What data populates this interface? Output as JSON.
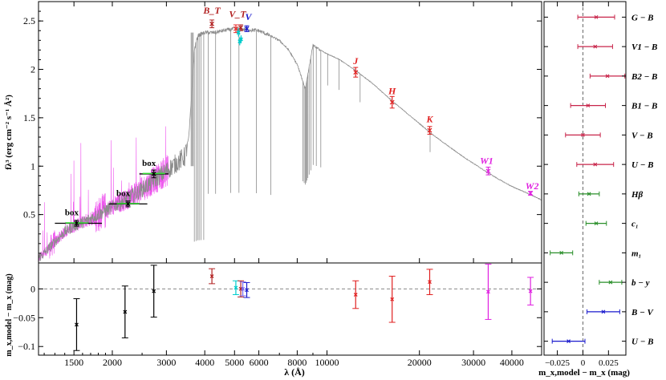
{
  "chart_data": [
    {
      "type": "line",
      "panel": "sed",
      "xscale": "log",
      "xlim": [
        1150,
        50000
      ],
      "ylim": [
        0,
        2.7
      ],
      "grid": false,
      "ylabel": "fλ³ (erg cm⁻² s⁻¹ Å²)",
      "x_ticks": [
        1500,
        2000,
        3000,
        4000,
        5000,
        6000,
        8000,
        10000,
        20000,
        30000,
        40000
      ],
      "x_tick_labels": [
        "1500",
        "2000",
        "3000",
        "4000",
        "5000",
        "6000",
        "8000",
        "10000",
        "20000",
        "30000",
        "40000"
      ],
      "y_ticks": [
        0.5,
        1,
        1.5,
        2,
        2.5
      ],
      "y_tick_labels": [
        "0.5",
        "1",
        "1.5",
        "2",
        "2.5"
      ],
      "model": {
        "x": [
          1150,
          1200,
          1300,
          1400,
          1500,
          1600,
          1800,
          2000,
          2200,
          2400,
          2600,
          2800,
          3000,
          3200,
          3450,
          3550,
          3650,
          3700,
          3800,
          4000,
          4300,
          4600,
          5000,
          5500,
          6000,
          6500,
          7000,
          7500,
          8000,
          8300,
          8500,
          9000,
          9500,
          10000,
          11000,
          12500,
          14000,
          16500,
          18000,
          20000,
          22000,
          25000,
          28000,
          32000,
          36000,
          40000,
          45000,
          50000
        ],
        "y": [
          0.05,
          0.1,
          0.22,
          0.32,
          0.38,
          0.42,
          0.5,
          0.58,
          0.65,
          0.72,
          0.8,
          0.88,
          0.95,
          1.02,
          1.1,
          1.3,
          1.9,
          2.2,
          2.35,
          2.38,
          2.38,
          2.4,
          2.42,
          2.41,
          2.4,
          2.35,
          2.3,
          2.2,
          2.05,
          1.9,
          1.8,
          2.25,
          2.2,
          2.16,
          2.1,
          1.98,
          1.86,
          1.66,
          1.56,
          1.44,
          1.33,
          1.2,
          1.09,
          0.97,
          0.87,
          0.79,
          0.72,
          0.65
        ]
      },
      "photometry": [
        {
          "label": "box",
          "x": 1530,
          "y": 0.41,
          "yerr": 0.03,
          "xerr": [
            1300,
            1850
          ],
          "color": "#000000"
        },
        {
          "label": "box",
          "x": 2250,
          "y": 0.61,
          "yerr": 0.03,
          "xerr": [
            1950,
            2600
          ],
          "color": "#000000"
        },
        {
          "label": "box",
          "x": 2730,
          "y": 0.92,
          "yerr": 0.04,
          "xerr": [
            2450,
            3050
          ],
          "color": "#000000"
        },
        {
          "label": "B_T",
          "x": 4220,
          "y": 2.47,
          "yerr": 0.04,
          "color": "#b22222"
        },
        {
          "label": "V_T",
          "x": 5240,
          "y": 2.43,
          "yerr": 0.03,
          "color": "#b22222"
        },
        {
          "label": "V",
          "x": 5480,
          "y": 2.42,
          "yerr": 0.03,
          "color": "#1a1acd"
        },
        {
          "label": "",
          "x": 5050,
          "y": 2.42,
          "yerr": 0.04,
          "color": "#e83030"
        },
        {
          "label": "J",
          "x": 12400,
          "y": 1.97,
          "yerr": 0.05,
          "color": "#e02020"
        },
        {
          "label": "H",
          "x": 16300,
          "y": 1.66,
          "yerr": 0.06,
          "color": "#e02020"
        },
        {
          "label": "K",
          "x": 21600,
          "y": 1.37,
          "yerr": 0.04,
          "color": "#e02020"
        },
        {
          "label": "W1",
          "x": 33500,
          "y": 0.95,
          "yerr": 0.04,
          "color": "#e020e0"
        },
        {
          "label": "W2",
          "x": 46000,
          "y": 0.72,
          "yerr": 0.02,
          "color": "#e020e0"
        }
      ],
      "strom_points": [
        {
          "x": 5150,
          "y": 2.38,
          "color": "#00cccc"
        },
        {
          "x": 5200,
          "y": 2.29,
          "color": "#00cccc"
        },
        {
          "x": 5250,
          "y": 2.31,
          "color": "#00cccc"
        }
      ]
    },
    {
      "type": "scatter",
      "panel": "residuals",
      "xscale": "log",
      "xlim": [
        1150,
        50000
      ],
      "ylim": [
        -0.115,
        0.045
      ],
      "grid": false,
      "xlabel": "λ (Å)",
      "ylabel": "m_x,model − m_x (mag)",
      "y_ticks": [
        -0.1,
        -0.05,
        0
      ],
      "y_tick_labels": [
        "−0.1",
        "−0.05",
        "0"
      ],
      "points": [
        {
          "x": 1530,
          "y": -0.062,
          "yerr": 0.045,
          "color": "#000000"
        },
        {
          "x": 2200,
          "y": -0.04,
          "yerr": 0.045,
          "color": "#000000"
        },
        {
          "x": 2730,
          "y": -0.004,
          "yerr": 0.045,
          "color": "#000000"
        },
        {
          "x": 4220,
          "y": 0.022,
          "yerr": 0.013,
          "color": "#b22222"
        },
        {
          "x": 5050,
          "y": 0.002,
          "yerr": 0.012,
          "color": "#00cccc"
        },
        {
          "x": 5240,
          "y": 0.0,
          "yerr": 0.014,
          "color": "#b22222"
        },
        {
          "x": 5320,
          "y": 0.0,
          "yerr": 0.012,
          "color": "#7b68ee"
        },
        {
          "x": 5480,
          "y": -0.002,
          "yerr": 0.013,
          "color": "#1a1acd"
        },
        {
          "x": 12400,
          "y": -0.01,
          "yerr": 0.024,
          "color": "#e02020"
        },
        {
          "x": 16300,
          "y": -0.018,
          "yerr": 0.04,
          "color": "#e02020"
        },
        {
          "x": 21600,
          "y": 0.012,
          "yerr": 0.022,
          "color": "#e02020"
        },
        {
          "x": 33500,
          "y": -0.005,
          "yerr": 0.048,
          "color": "#e020e0"
        },
        {
          "x": 46000,
          "y": -0.004,
          "yerr": 0.024,
          "color": "#e020e0"
        }
      ]
    },
    {
      "type": "scatter",
      "panel": "colors",
      "xlim": [
        -0.038,
        0.042
      ],
      "grid": false,
      "xlabel": "m_x,model − m_x (mag)",
      "x_ticks": [
        -0.025,
        0,
        0.025
      ],
      "x_tick_labels": [
        "−0.025",
        "0",
        "0.025"
      ],
      "rows": [
        {
          "label": "G − B",
          "value": 0.013,
          "err": 0.018,
          "color": "#c8254a"
        },
        {
          "label": "V1 − B",
          "value": 0.012,
          "err": 0.017,
          "color": "#c8254a"
        },
        {
          "label": "B2 − B",
          "value": 0.024,
          "err": 0.017,
          "color": "#c8254a"
        },
        {
          "label": "B1 − B",
          "value": 0.005,
          "err": 0.017,
          "color": "#c8254a"
        },
        {
          "label": "V − B",
          "value": 0.0,
          "err": 0.017,
          "color": "#c8254a"
        },
        {
          "label": "U − B",
          "value": 0.012,
          "err": 0.018,
          "color": "#c8254a"
        },
        {
          "label": "Hβ",
          "value": 0.006,
          "err": 0.01,
          "color": "#2a8f2a"
        },
        {
          "label": "c₁",
          "value": 0.013,
          "err": 0.01,
          "color": "#2a8f2a"
        },
        {
          "label": "m₁",
          "value": -0.021,
          "err": 0.011,
          "color": "#2a8f2a"
        },
        {
          "label": "b − y",
          "value": 0.027,
          "err": 0.011,
          "color": "#2a8f2a"
        },
        {
          "label": "B − V",
          "value": 0.02,
          "err": 0.016,
          "color": "#1a1acd"
        },
        {
          "label": "U − B",
          "value": -0.014,
          "err": 0.016,
          "color": "#1a1acd"
        }
      ]
    }
  ],
  "colors": {
    "model": "#8c8c8c",
    "spectrum": "#ee55ee",
    "box_marker": "#33dd33"
  }
}
